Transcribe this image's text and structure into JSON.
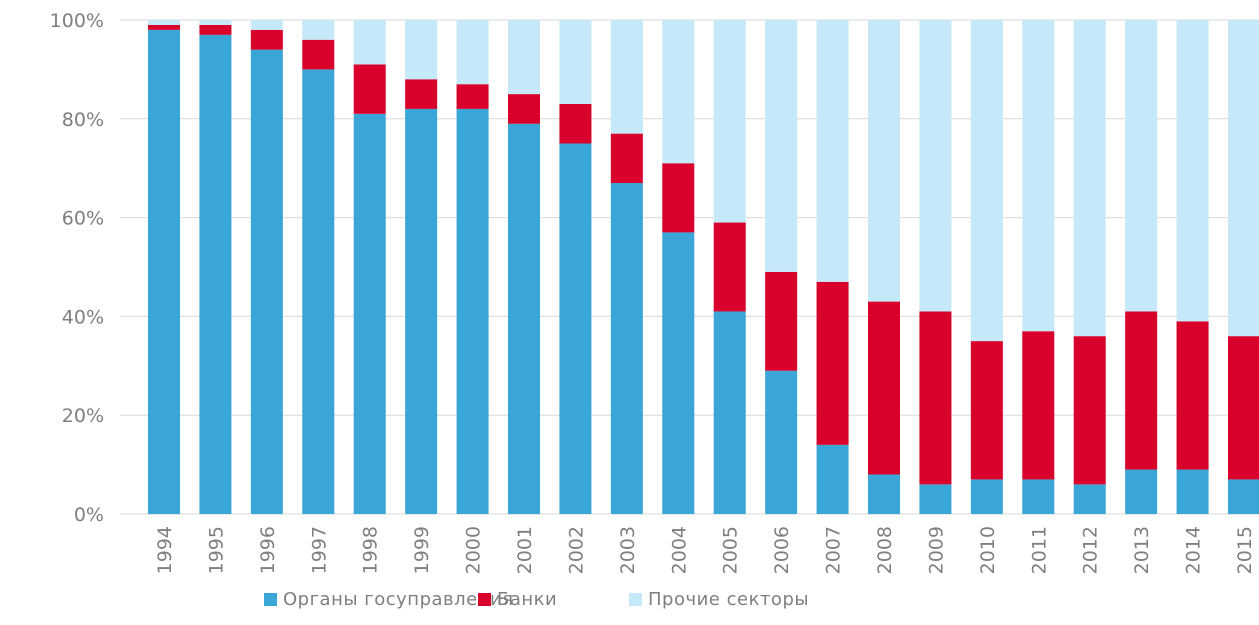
{
  "chart_data": {
    "type": "bar",
    "stacked": true,
    "percent_stacked": true,
    "categories": [
      "1994",
      "1995",
      "1996",
      "1997",
      "1998",
      "1999",
      "2000",
      "2001",
      "2002",
      "2003",
      "2004",
      "2005",
      "2006",
      "2007",
      "2008",
      "2009",
      "2010",
      "2011",
      "2012",
      "2013",
      "2014",
      "2015"
    ],
    "series": [
      {
        "name": "Органы госуправления",
        "color": "#3aa6d8",
        "values": [
          98,
          97,
          94,
          90,
          81,
          82,
          82,
          79,
          75,
          67,
          57,
          41,
          29,
          14,
          8,
          6,
          7,
          7,
          6,
          9,
          9,
          7
        ]
      },
      {
        "name": "Банки",
        "color": "#d9002b",
        "values": [
          1,
          2,
          4,
          6,
          10,
          6,
          5,
          6,
          8,
          10,
          14,
          18,
          20,
          33,
          35,
          35,
          28,
          30,
          30,
          32,
          30,
          29
        ]
      },
      {
        "name": "Прочие секторы",
        "color": "#c5e9f8",
        "values": [
          1,
          1,
          2,
          4,
          9,
          12,
          13,
          15,
          17,
          23,
          29,
          41,
          51,
          53,
          57,
          59,
          65,
          63,
          64,
          59,
          61,
          64
        ]
      }
    ],
    "y_ticks": [
      "0%",
      "20%",
      "40%",
      "60%",
      "80%",
      "100%"
    ],
    "ylim": [
      0,
      100
    ],
    "grid": true,
    "legend_position": "bottom",
    "title": "",
    "xlabel": "",
    "ylabel": ""
  }
}
